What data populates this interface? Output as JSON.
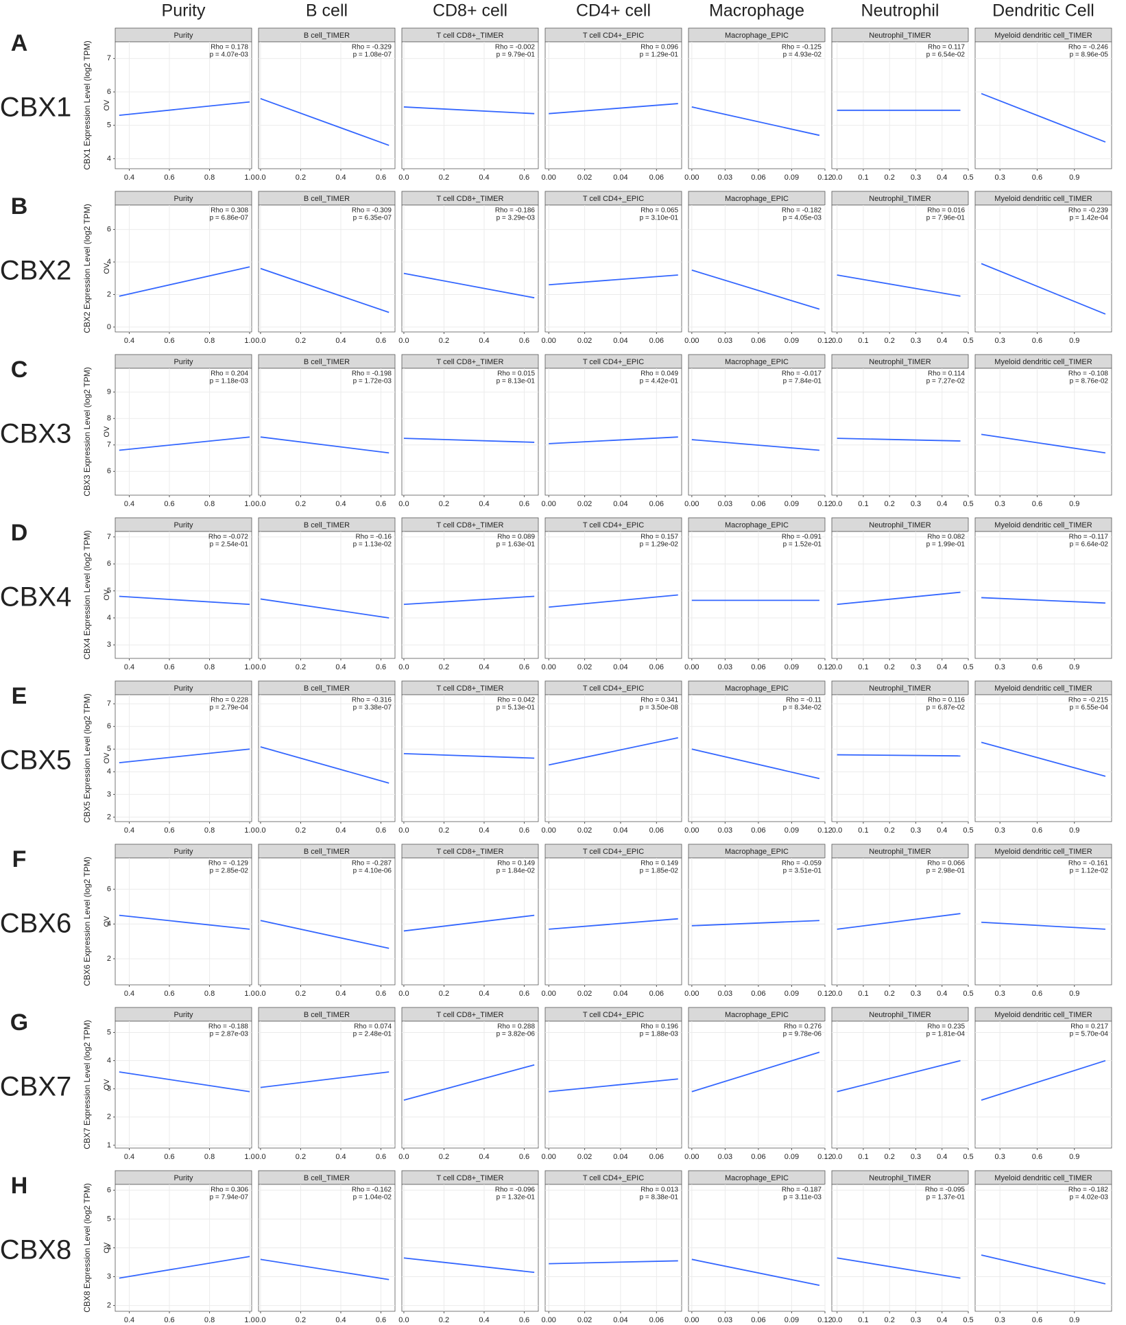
{
  "chart_data": {
    "type": "scatter-grid",
    "line_color": "#3366ff",
    "stat_color": "#e41a1c",
    "grid": true,
    "sublabel": "OV",
    "columns": [
      {
        "title": "Purity",
        "strip": "Purity",
        "xlim": [
          0.33,
          1.01
        ],
        "xticks": [
          0.4,
          0.6,
          0.8,
          {
            "value": 1,
            "label": "1.0"
          }
        ],
        "fit_x": [
          0.35,
          1.0
        ]
      },
      {
        "title": "B cell",
        "strip": "B cell_TIMER",
        "xlim": [
          -0.01,
          0.67
        ],
        "xticks": [
          {
            "value": 0,
            "label": "0.0"
          },
          0.2,
          0.4,
          0.6
        ],
        "fit_x": [
          0,
          0.64
        ]
      },
      {
        "title": "CD8+ cell",
        "strip": "T cell CD8+_TIMER",
        "xlim": [
          -0.01,
          0.67
        ],
        "xticks": [
          {
            "value": 0,
            "label": "0.0"
          },
          0.2,
          0.4,
          0.6
        ],
        "fit_x": [
          0,
          0.65
        ]
      },
      {
        "title": "CD4+ cell",
        "strip": "T cell CD4+_EPIC",
        "xlim": [
          -0.002,
          0.074
        ],
        "xticks": [
          {
            "value": 0,
            "label": "0.00"
          },
          0.02,
          0.04,
          0.06
        ],
        "fit_x": [
          0,
          0.072
        ]
      },
      {
        "title": "Macrophage",
        "strip": "Macrophage_EPIC",
        "xlim": [
          -0.003,
          0.12
        ],
        "xticks": [
          {
            "value": 0,
            "label": "0.00"
          },
          0.03,
          0.06,
          0.09,
          0.12
        ],
        "fit_x": [
          0,
          0.115
        ]
      },
      {
        "title": "Neutrophil",
        "strip": "Neutrophil_TIMER",
        "xlim": [
          -0.02,
          0.5
        ],
        "xticks": [
          {
            "value": 0,
            "label": "0.0"
          },
          0.1,
          0.2,
          0.3,
          0.4,
          0.5
        ],
        "fit_x": [
          0,
          0.47
        ]
      },
      {
        "title": "Dendritic Cell",
        "strip": "Myeloid dendritic cell_TIMER",
        "xlim": [
          0.1,
          1.2
        ],
        "xticks": [
          0.3,
          0.6,
          0.9
        ],
        "fit_x": [
          0.15,
          1.15
        ]
      }
    ],
    "rows": [
      {
        "letter": "A",
        "gene": "CBX1",
        "ylabel": "CBX1 Expression Level (log2 TPM)",
        "ylim": [
          3.7,
          7.5
        ],
        "yticks": [
          4,
          5,
          6,
          7
        ],
        "panels": [
          {
            "rho": "Rho = 0.178",
            "p": "p = 4.07e-03",
            "fit_y": [
              5.3,
              5.7
            ]
          },
          {
            "rho": "Rho = -0.329",
            "p": "p = 1.08e-07",
            "fit_y": [
              5.8,
              4.4
            ]
          },
          {
            "rho": "Rho = -0.002",
            "p": "p = 9.79e-01",
            "fit_y": [
              5.55,
              5.35
            ]
          },
          {
            "rho": "Rho = 0.096",
            "p": "p = 1.29e-01",
            "fit_y": [
              5.35,
              5.65
            ]
          },
          {
            "rho": "Rho = -0.125",
            "p": "p = 4.93e-02",
            "fit_y": [
              5.55,
              4.7
            ]
          },
          {
            "rho": "Rho = 0.117",
            "p": "p = 6.54e-02",
            "fit_y": [
              5.45,
              5.45
            ]
          },
          {
            "rho": "Rho = -0.246",
            "p": "p = 8.96e-05",
            "fit_y": [
              5.95,
              4.5
            ]
          }
        ]
      },
      {
        "letter": "B",
        "gene": "CBX2",
        "ylabel": "CBX2 Expression Level (log2 TPM)",
        "ylim": [
          -0.3,
          7.5
        ],
        "yticks": [
          0,
          2,
          4,
          6
        ],
        "panels": [
          {
            "rho": "Rho = 0.308",
            "p": "p = 6.86e-07",
            "fit_y": [
              1.9,
              3.7
            ]
          },
          {
            "rho": "Rho = -0.309",
            "p": "p = 6.35e-07",
            "fit_y": [
              3.6,
              0.9
            ]
          },
          {
            "rho": "Rho = -0.186",
            "p": "p = 3.29e-03",
            "fit_y": [
              3.3,
              1.8
            ]
          },
          {
            "rho": "Rho = 0.065",
            "p": "p = 3.10e-01",
            "fit_y": [
              2.6,
              3.2
            ]
          },
          {
            "rho": "Rho = -0.182",
            "p": "p = 4.05e-03",
            "fit_y": [
              3.5,
              1.1
            ]
          },
          {
            "rho": "Rho = 0.016",
            "p": "p = 7.96e-01",
            "fit_y": [
              3.2,
              1.9
            ]
          },
          {
            "rho": "Rho = -0.239",
            "p": "p = 1.42e-04",
            "fit_y": [
              3.9,
              0.8
            ]
          }
        ]
      },
      {
        "letter": "C",
        "gene": "CBX3",
        "ylabel": "CBX3 Expression Level (log2 TPM)",
        "ylim": [
          5.1,
          9.9
        ],
        "yticks": [
          6,
          7,
          8,
          9
        ],
        "panels": [
          {
            "rho": "Rho = 0.204",
            "p": "p = 1.18e-03",
            "fit_y": [
              6.8,
              7.3
            ]
          },
          {
            "rho": "Rho = -0.198",
            "p": "p = 1.72e-03",
            "fit_y": [
              7.3,
              6.7
            ]
          },
          {
            "rho": "Rho = 0.015",
            "p": "p = 8.13e-01",
            "fit_y": [
              7.25,
              7.1
            ]
          },
          {
            "rho": "Rho = 0.049",
            "p": "p = 4.42e-01",
            "fit_y": [
              7.05,
              7.3
            ]
          },
          {
            "rho": "Rho = -0.017",
            "p": "p = 7.84e-01",
            "fit_y": [
              7.2,
              6.8
            ]
          },
          {
            "rho": "Rho = 0.114",
            "p": "p = 7.27e-02",
            "fit_y": [
              7.25,
              7.15
            ]
          },
          {
            "rho": "Rho = -0.108",
            "p": "p = 8.76e-02",
            "fit_y": [
              7.4,
              6.7
            ]
          }
        ]
      },
      {
        "letter": "D",
        "gene": "CBX4",
        "ylabel": "CBX4 Expression Level (log2 TPM)",
        "ylim": [
          2.5,
          7.2
        ],
        "yticks": [
          3,
          4,
          5,
          6,
          7
        ],
        "panels": [
          {
            "rho": "Rho = -0.072",
            "p": "p = 2.54e-01",
            "fit_y": [
              4.8,
              4.5
            ]
          },
          {
            "rho": "Rho = -0.16",
            "p": "p = 1.13e-02",
            "fit_y": [
              4.7,
              4.0
            ]
          },
          {
            "rho": "Rho = 0.089",
            "p": "p = 1.63e-01",
            "fit_y": [
              4.5,
              4.8
            ]
          },
          {
            "rho": "Rho = 0.157",
            "p": "p = 1.29e-02",
            "fit_y": [
              4.4,
              4.85
            ]
          },
          {
            "rho": "Rho = -0.091",
            "p": "p = 1.52e-01",
            "fit_y": [
              4.65,
              4.65
            ]
          },
          {
            "rho": "Rho = 0.082",
            "p": "p = 1.99e-01",
            "fit_y": [
              4.5,
              4.95
            ]
          },
          {
            "rho": "Rho = -0.117",
            "p": "p = 6.64e-02",
            "fit_y": [
              4.75,
              4.55
            ]
          }
        ]
      },
      {
        "letter": "E",
        "gene": "CBX5",
        "ylabel": "CBX5 Expression Level (log2 TPM)",
        "ylim": [
          1.8,
          7.4
        ],
        "yticks": [
          2,
          3,
          4,
          5,
          6,
          7
        ],
        "panels": [
          {
            "rho": "Rho = 0.228",
            "p": "p = 2.79e-04",
            "fit_y": [
              4.4,
              5.0
            ]
          },
          {
            "rho": "Rho = -0.316",
            "p": "p = 3.38e-07",
            "fit_y": [
              5.1,
              3.5
            ]
          },
          {
            "rho": "Rho = 0.042",
            "p": "p = 5.13e-01",
            "fit_y": [
              4.8,
              4.6
            ]
          },
          {
            "rho": "Rho = 0.341",
            "p": "p = 3.50e-08",
            "fit_y": [
              4.3,
              5.5
            ]
          },
          {
            "rho": "Rho = -0.11",
            "p": "p = 8.34e-02",
            "fit_y": [
              5.0,
              3.7
            ]
          },
          {
            "rho": "Rho = 0.116",
            "p": "p = 6.87e-02",
            "fit_y": [
              4.75,
              4.7
            ]
          },
          {
            "rho": "Rho = -0.215",
            "p": "p = 6.55e-04",
            "fit_y": [
              5.3,
              3.8
            ]
          }
        ]
      },
      {
        "letter": "F",
        "gene": "CBX6",
        "ylabel": "CBX6 Expression Level (log2 TPM)",
        "ylim": [
          0.5,
          7.8
        ],
        "yticks": [
          2,
          4,
          6
        ],
        "panels": [
          {
            "rho": "Rho = -0.129",
            "p": "p = 2.85e-02",
            "fit_y": [
              4.5,
              3.7
            ]
          },
          {
            "rho": "Rho = -0.287",
            "p": "p = 4.10e-06",
            "fit_y": [
              4.2,
              2.6
            ]
          },
          {
            "rho": "Rho = 0.149",
            "p": "p = 1.84e-02",
            "fit_y": [
              3.6,
              4.5
            ]
          },
          {
            "rho": "Rho = 0.149",
            "p": "p = 1.85e-02",
            "fit_y": [
              3.7,
              4.3
            ]
          },
          {
            "rho": "Rho = -0.059",
            "p": "p = 3.51e-01",
            "fit_y": [
              3.9,
              4.2
            ]
          },
          {
            "rho": "Rho = 0.066",
            "p": "p = 2.98e-01",
            "fit_y": [
              3.7,
              4.6
            ]
          },
          {
            "rho": "Rho = -0.161",
            "p": "p = 1.12e-02",
            "fit_y": [
              4.1,
              3.7
            ]
          }
        ]
      },
      {
        "letter": "G",
        "gene": "CBX7",
        "ylabel": "CBX7 Expression Level (log2 TPM)",
        "ylim": [
          0.9,
          5.4
        ],
        "yticks": [
          1,
          2,
          3,
          4,
          5
        ],
        "panels": [
          {
            "rho": "Rho = -0.188",
            "p": "p = 2.87e-03",
            "fit_y": [
              3.6,
              2.9
            ]
          },
          {
            "rho": "Rho = 0.074",
            "p": "p = 2.48e-01",
            "fit_y": [
              3.05,
              3.6
            ]
          },
          {
            "rho": "Rho = 0.288",
            "p": "p = 3.82e-06",
            "fit_y": [
              2.6,
              3.85
            ]
          },
          {
            "rho": "Rho = 0.196",
            "p": "p = 1.88e-03",
            "fit_y": [
              2.9,
              3.35
            ]
          },
          {
            "rho": "Rho = 0.276",
            "p": "p = 9.78e-06",
            "fit_y": [
              2.9,
              4.3
            ]
          },
          {
            "rho": "Rho = 0.235",
            "p": "p = 1.81e-04",
            "fit_y": [
              2.9,
              4.0
            ]
          },
          {
            "rho": "Rho = 0.217",
            "p": "p = 5.70e-04",
            "fit_y": [
              2.6,
              4.0
            ]
          }
        ]
      },
      {
        "letter": "H",
        "gene": "CBX8",
        "ylabel": "CBX8 Expression Level (log2 TPM)",
        "ylim": [
          1.8,
          6.2
        ],
        "yticks": [
          2,
          3,
          4,
          5,
          6
        ],
        "panels": [
          {
            "rho": "Rho = 0.306",
            "p": "p = 7.94e-07",
            "fit_y": [
              2.95,
              3.7
            ]
          },
          {
            "rho": "Rho = -0.162",
            "p": "p = 1.04e-02",
            "fit_y": [
              3.6,
              2.9
            ]
          },
          {
            "rho": "Rho = -0.096",
            "p": "p = 1.32e-01",
            "fit_y": [
              3.65,
              3.15
            ]
          },
          {
            "rho": "Rho = 0.013",
            "p": "p = 8.38e-01",
            "fit_y": [
              3.45,
              3.55
            ]
          },
          {
            "rho": "Rho = -0.187",
            "p": "p = 3.11e-03",
            "fit_y": [
              3.6,
              2.7
            ]
          },
          {
            "rho": "Rho = -0.095",
            "p": "p = 1.37e-01",
            "fit_y": [
              3.65,
              2.95
            ]
          },
          {
            "rho": "Rho = -0.182",
            "p": "p = 4.02e-03",
            "fit_y": [
              3.75,
              2.75
            ]
          }
        ]
      }
    ]
  }
}
